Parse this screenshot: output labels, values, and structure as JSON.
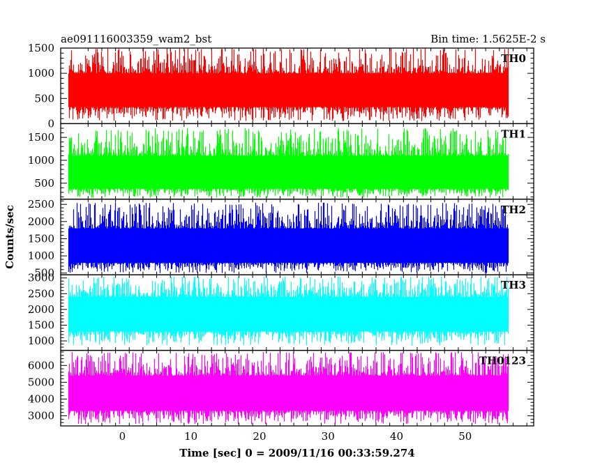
{
  "chart_data": {
    "type": "line",
    "title_left": "ae091116003359_wam2_bst",
    "title_right": "Bin time: 1.5625E-2 s",
    "xlabel": "Time [sec] 0 = 2009/11/16 00:33:59.274",
    "ylabel": "Counts/sec",
    "xlim": [
      -9,
      60
    ],
    "x_data_range": [
      -7.8,
      56.2
    ],
    "xticks": [
      0,
      10,
      20,
      30,
      40,
      50
    ],
    "xtick_labels": [
      "0",
      "10",
      "20",
      "30",
      "40",
      "50"
    ],
    "grid": false,
    "panels": [
      {
        "label": "TH0",
        "color": "#ff0000",
        "ylim": [
          0,
          1500
        ],
        "yticks": [
          0,
          500,
          1000,
          1500
        ],
        "ytick_labels": [
          "0",
          "500",
          "1000",
          "1500"
        ],
        "mean": 640,
        "band_low": 330,
        "band_high": 1000,
        "spike_low": 50,
        "spike_high": 1500
      },
      {
        "label": "TH1",
        "color": "#00ff00",
        "ylim": [
          150,
          1800
        ],
        "yticks": [
          500,
          1000,
          1500
        ],
        "ytick_labels": [
          "500",
          "1000",
          "1500"
        ],
        "mean": 700,
        "band_low": 380,
        "band_high": 1100,
        "spike_low": 180,
        "spike_high": 1700
      },
      {
        "label": "TH2",
        "color": "#0000ff",
        "ylim": [
          450,
          2650
        ],
        "yticks": [
          500,
          1000,
          1500,
          2000,
          2500
        ],
        "ytick_labels": [
          "500",
          "1000",
          "1500",
          "2000",
          "2500"
        ],
        "mean": 1250,
        "band_low": 800,
        "band_high": 1800,
        "spike_low": 500,
        "spike_high": 2550
      },
      {
        "label": "TH3",
        "color": "#00ffff",
        "ylim": [
          700,
          3100
        ],
        "yticks": [
          1000,
          1500,
          2000,
          2500,
          3000
        ],
        "ytick_labels": [
          "1000",
          "1500",
          "2000",
          "2500",
          "3000"
        ],
        "mean": 1800,
        "band_low": 1300,
        "band_high": 2400,
        "spike_low": 850,
        "spike_high": 3050
      },
      {
        "label": "TH0123",
        "color": "#ff00ff",
        "ylim": [
          2400,
          6900
        ],
        "yticks": [
          3000,
          4000,
          5000,
          6000
        ],
        "ytick_labels": [
          "3000",
          "4000",
          "5000",
          "6000"
        ],
        "mean": 4300,
        "band_low": 3300,
        "band_high": 5400,
        "spike_low": 2500,
        "spike_high": 6800
      }
    ]
  }
}
